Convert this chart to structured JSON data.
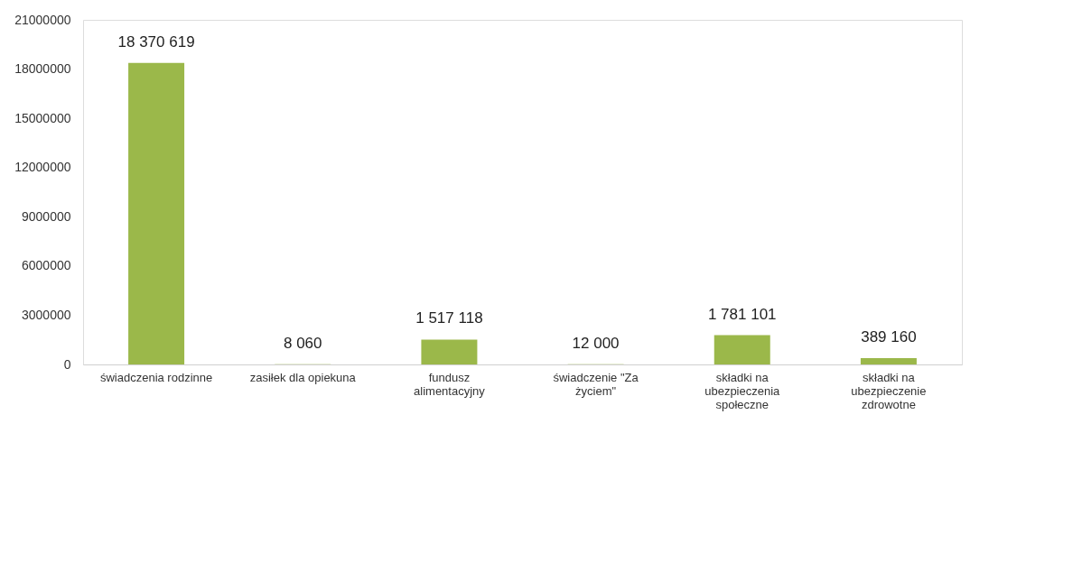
{
  "chart_data": {
    "type": "bar",
    "categories": [
      "świadczenia rodzinne",
      "zasiłek dla opiekuna",
      "fundusz alimentacyjny",
      "świadczenie \"Za życiem\"",
      "składki na ubezpieczenia społeczne",
      "składki na ubezpieczenie zdrowotne"
    ],
    "values": [
      18370619,
      8060,
      1517118,
      12000,
      1781101,
      389160
    ],
    "value_labels": [
      "18 370 619",
      "8 060",
      "1 517 118",
      "12 000",
      "1 781 101",
      "389 160"
    ],
    "color": "#9bb84a",
    "ylim": [
      0,
      21000000
    ],
    "yticks": [
      0,
      3000000,
      6000000,
      9000000,
      12000000,
      15000000,
      18000000,
      21000000
    ],
    "grid": false
  }
}
